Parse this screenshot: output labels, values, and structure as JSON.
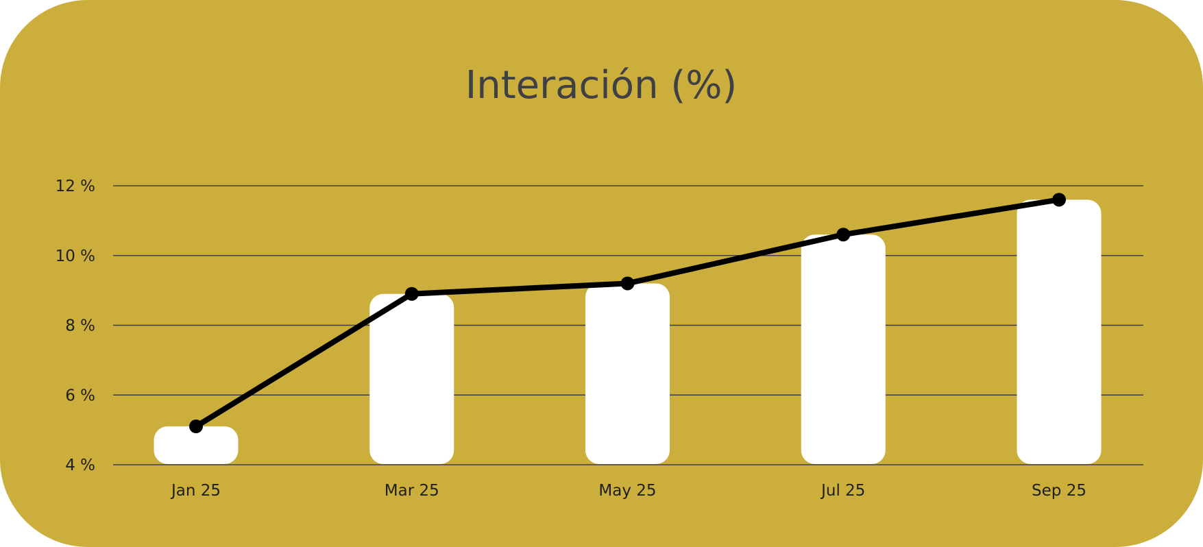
{
  "chart_data": {
    "type": "bar",
    "title": "Interación (%)",
    "xlabel": "",
    "ylabel": "",
    "categories": [
      "Jan 25",
      "Mar 25",
      "May 25",
      "Jul 25",
      "Sep 25"
    ],
    "series": [
      {
        "name": "bars",
        "type": "bar",
        "values": [
          5.1,
          8.9,
          9.2,
          10.6,
          11.6
        ]
      },
      {
        "name": "line",
        "type": "line",
        "values": [
          5.1,
          8.9,
          9.2,
          10.6,
          11.6
        ]
      }
    ],
    "ylim": [
      4,
      12
    ],
    "yticks": [
      4,
      6,
      8,
      10,
      12
    ],
    "ytick_labels": [
      "4 %",
      "6 %",
      "8 %",
      "10 %",
      "12 %"
    ],
    "grid": true,
    "colors": {
      "background": "#CBAE3B",
      "bar": "#FFFFFF",
      "line": "#000000",
      "grid": "#3f3f46",
      "title": "#3f3f46"
    }
  }
}
